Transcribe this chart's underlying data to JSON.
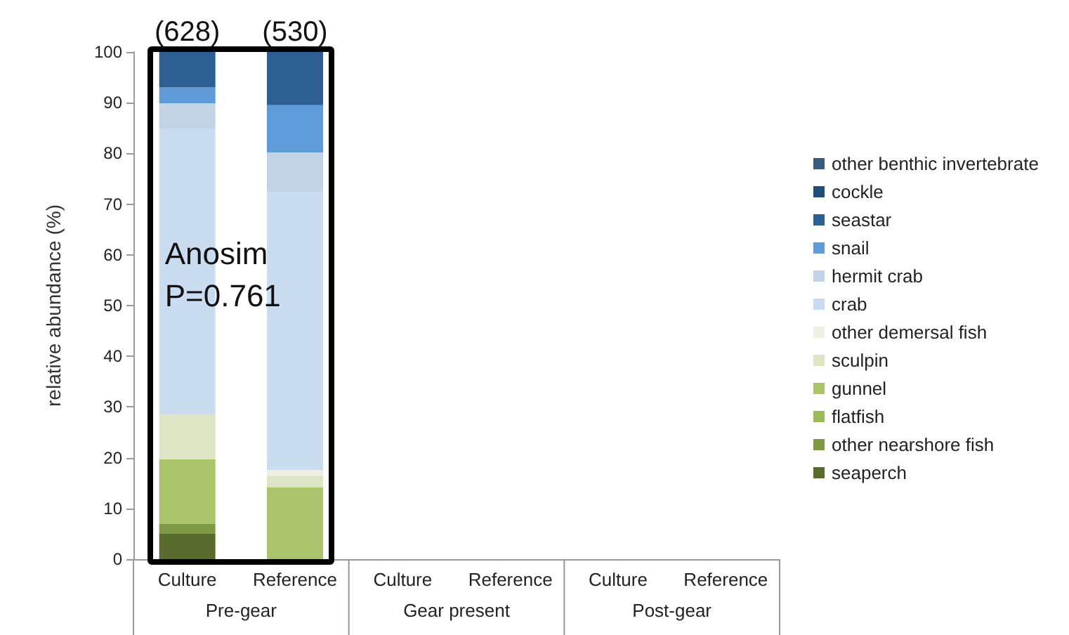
{
  "chart_data": {
    "type": "bar",
    "stacked": true,
    "ylabel": "relative abundance (%)",
    "categories": [
      "Culture",
      "Reference",
      "Culture",
      "Reference",
      "Culture",
      "Reference"
    ],
    "ylim": [
      0,
      100
    ],
    "yticks": [
      0,
      10,
      20,
      30,
      40,
      50,
      60,
      70,
      80,
      90,
      100
    ],
    "grid": false,
    "legend": "right",
    "series": [
      {
        "name": "seaperch",
        "color": "#5a6b2e",
        "values": [
          5,
          0,
          null,
          null,
          null,
          null
        ]
      },
      {
        "name": "other nearshore fish",
        "color": "#7f9a45",
        "values": [
          2,
          0,
          null,
          null,
          null,
          null
        ]
      },
      {
        "name": "flatfish",
        "color": "#9bbb59",
        "values": [
          0,
          0,
          null,
          null,
          null,
          null
        ]
      },
      {
        "name": "gunnel",
        "color": "#a9c46a",
        "values": [
          12.7,
          14.2,
          null,
          null,
          null,
          null
        ]
      },
      {
        "name": "sculpin",
        "color": "#dde6c4",
        "values": [
          8.8,
          2.3,
          null,
          null,
          null,
          null
        ]
      },
      {
        "name": "other demersal fish",
        "color": "#eef0e4",
        "values": [
          0,
          1.1,
          null,
          null,
          null,
          null
        ]
      },
      {
        "name": "crab",
        "color": "#c9dcf0",
        "values": [
          56.4,
          54.8,
          null,
          null,
          null,
          null
        ]
      },
      {
        "name": "hermit crab",
        "color": "#c3d3e6",
        "values": [
          5,
          7.8,
          null,
          null,
          null,
          null
        ]
      },
      {
        "name": "snail",
        "color": "#5f9bd8",
        "values": [
          3.1,
          9.3,
          null,
          null,
          null,
          null
        ]
      },
      {
        "name": "seastar",
        "color": "#2d5f93",
        "values": [
          7,
          10.5,
          null,
          null,
          null,
          null
        ]
      },
      {
        "name": "cockle",
        "color": "#1f4e79",
        "values": [
          0,
          0,
          null,
          null,
          null,
          null
        ]
      },
      {
        "name": "other benthic invertebrate",
        "color": "#3a5a7e",
        "values": [
          0,
          0,
          null,
          null,
          null,
          null
        ]
      }
    ],
    "annotations": [
      "(628)",
      "(530)",
      "Anosim\nP=0.761",
      "Pre-gear",
      "Gear present",
      "Post-gear"
    ]
  }
}
